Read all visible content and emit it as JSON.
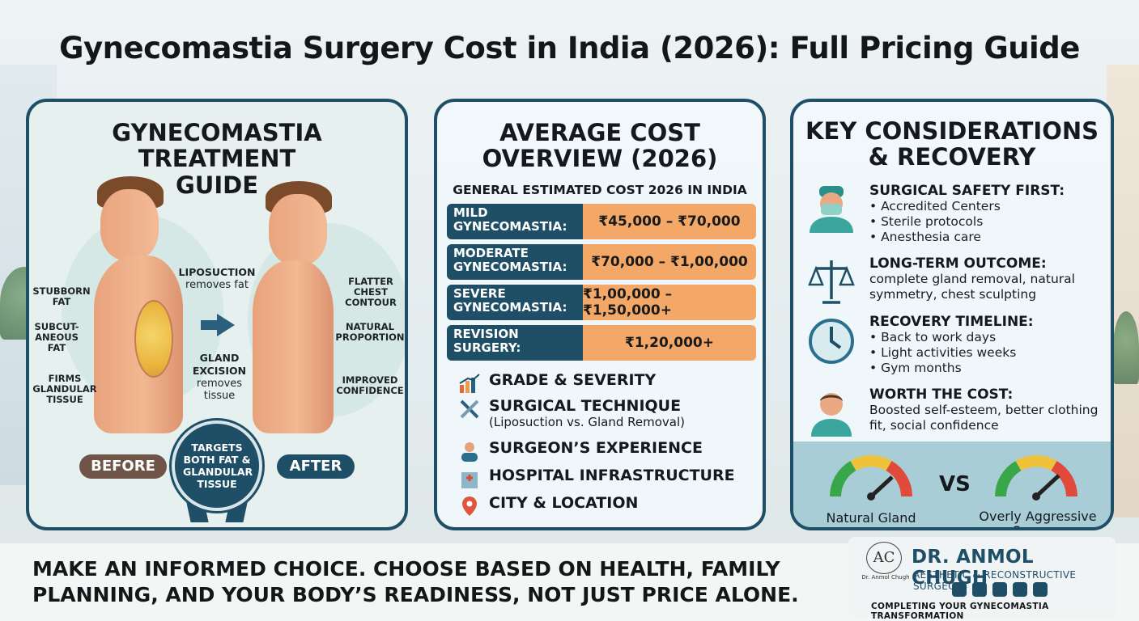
{
  "title": "Gynecomastia Surgery Cost in India (2026): Full Pricing Guide",
  "panel1": {
    "heading": "GYNECOMASTIA TREATMENT GUIDE",
    "labels": {
      "stubborn_fat": "STUBBORN FAT",
      "liposuction_head": "LIPOSUCTION",
      "liposuction_body": "removes fat",
      "subcutaneous_fat": "SUBCUT- ANEOUS FAT",
      "firms_glandular": "FIRMS GLANDULAR TISSUE",
      "gland_head": "GLAND EXCISION",
      "gland_body": "removes tissue",
      "flatter": "FLATTER CHEST CONTOUR",
      "natural": "NATURAL PROPORTION",
      "confidence": "IMPROVED CONFIDENCE"
    },
    "before": "BEFORE",
    "after": "AFTER",
    "badge": "TARGETS BOTH FAT & GLANDULAR TISSUE"
  },
  "panel2": {
    "heading": "AVERAGE COST OVERVIEW (2026)",
    "subheading": "GENERAL ESTIMATED COST 2026 IN INDIA",
    "rows": [
      {
        "label": "MILD GYNECOMASTIA:",
        "value": "₹45,000 – ₹70,000"
      },
      {
        "label": "MODERATE GYNECOMASTIA:",
        "value": "₹70,000 – ₹1,00,000"
      },
      {
        "label": "SEVERE GYNECOMASTIA:",
        "value": "₹1,00,000 – ₹1,50,000+"
      },
      {
        "label": "REVISION SURGERY:",
        "value": "₹1,20,000+"
      }
    ],
    "factors": [
      {
        "title": "GRADE & SEVERITY",
        "sub": "",
        "icon": "bar-chart-icon"
      },
      {
        "title": "SURGICAL TECHNIQUE",
        "sub": "(Liposuction vs. Gland Removal)",
        "icon": "surgical-tools-icon"
      },
      {
        "title": "SURGEON’S EXPERIENCE",
        "sub": "",
        "icon": "surgeon-icon"
      },
      {
        "title": "HOSPITAL INFRASTRUCTURE",
        "sub": "",
        "icon": "hospital-icon"
      },
      {
        "title": "CITY & LOCATION",
        "sub": "",
        "icon": "location-pin-icon"
      }
    ]
  },
  "panel3": {
    "heading": "KEY CONSIDERATIONS & RECOVERY",
    "items": [
      {
        "head": "SURGICAL SAFETY FIRST:",
        "bullets": [
          "Accredited Centers",
          "Sterile protocols",
          "Anesthesia care"
        ],
        "icon": "surgeon-mask-icon"
      },
      {
        "head": "LONG-TERM OUTCOME:",
        "text": "complete gland removal, natural symmetry, chest sculpting",
        "icon": "balance-scale-icon"
      },
      {
        "head": "RECOVERY TIMELINE:",
        "bullets": [
          "Back to work days",
          "Light activities weeks",
          "Gym months"
        ],
        "icon": "clock-icon"
      },
      {
        "head": "WORTH THE COST:",
        "text": "Boosted self-esteem, better clothing fit, social confidence",
        "icon": "person-icon"
      }
    ],
    "gauge_left": "Natural Gland",
    "vs": "VS",
    "gauge_right": "Overly Aggressive Surgery"
  },
  "footer": {
    "tagline": "MAKE AN INFORMED CHOICE. CHOOSE BASED ON HEALTH, FAMILY PLANNING,  AND YOUR BODY’S READINESS, NOT JUST PRICE ALONE."
  },
  "brand": {
    "logo_text": "AC",
    "logo_sub": "Dr. Anmol Chugh",
    "name": "DR. ANMOL CHUGH",
    "role": "AESTHETIC & RECONSTRUCTIVE SURGEON",
    "line": "COMPLETING YOUR GYNECOMASTIA TRANSFORMATION"
  },
  "colors": {
    "navy": "#1f4e67",
    "orange": "#f3a868",
    "brown": "#6f5548"
  }
}
